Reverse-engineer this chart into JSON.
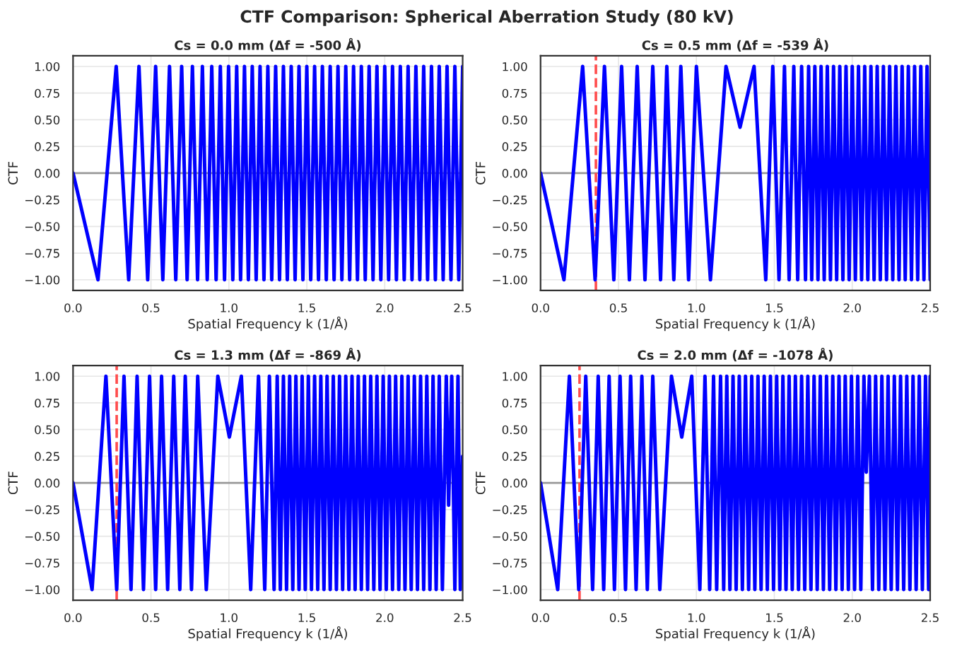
{
  "chart_data": [
    {
      "type": "line",
      "title": "Cs = 0.0 mm (Δf = -500 Å)",
      "xlabel": "Spatial Frequency k (1/Å)",
      "ylabel": "CTF",
      "annotations": [
        "CTF Comparison: Spherical Aberration Study (80 kV)"
      ],
      "xlim": [
        0,
        2.5
      ],
      "ylim": [
        -1.1,
        1.1
      ],
      "xticks": [
        {
          "value": 0,
          "label": "0.0"
        },
        {
          "value": 0.5,
          "label": "0.5"
        },
        {
          "value": 1,
          "label": "1.0"
        },
        {
          "value": 1.5,
          "label": "1.5"
        },
        {
          "value": 2,
          "label": "2.0"
        },
        {
          "value": 2.5,
          "label": "2.5"
        }
      ],
      "yticks": [
        {
          "value": -1,
          "label": "−1.00"
        },
        {
          "value": -0.75,
          "label": "−0.75"
        },
        {
          "value": -0.5,
          "label": "−0.50"
        },
        {
          "value": -0.25,
          "label": "−0.25"
        },
        {
          "value": 0,
          "label": "0.00"
        },
        {
          "value": 0.25,
          "label": "0.25"
        },
        {
          "value": 0.5,
          "label": "0.50"
        },
        {
          "value": 0.75,
          "label": "0.75"
        },
        {
          "value": 1,
          "label": "1.00"
        }
      ],
      "grid": true,
      "line_style": "solid",
      "ref_lines": [
        {
          "axis": "y",
          "value": 0,
          "color": "#999999"
        }
      ],
      "series": [
        {
          "color": "#0000ff",
          "x": [
            0,
            0.16,
            0.277,
            0.357,
            0.423,
            0.479,
            0.53,
            0.576,
            0.619,
            0.659,
            0.697,
            0.732,
            0.766,
            0.799,
            0.83,
            0.861,
            0.89,
            0.918,
            0.945,
            0.972,
            0.998,
            1.025,
            1.05,
            1.075,
            1.1,
            1.125,
            1.15,
            1.175,
            1.2,
            1.225,
            1.25,
            1.275,
            1.3,
            1.325,
            1.35,
            1.375,
            1.4,
            1.425,
            1.45,
            1.475,
            1.5,
            1.525,
            1.55,
            1.575,
            1.6,
            1.625,
            1.65,
            1.675,
            1.7,
            1.725,
            1.75,
            1.775,
            1.8,
            1.825,
            1.85,
            1.875,
            1.9,
            1.925,
            1.95,
            1.975,
            2.0,
            2.025,
            2.05,
            2.075,
            2.1,
            2.125,
            2.15,
            2.175,
            2.2,
            2.225,
            2.25,
            2.275,
            2.3,
            2.325,
            2.35,
            2.375,
            2.4,
            2.425,
            2.45,
            2.475,
            2.5
          ],
          "values": [
            0,
            -1,
            1,
            -1,
            1,
            -1,
            1,
            -1,
            1,
            -1,
            1,
            -1,
            1,
            -1,
            1,
            -1,
            1,
            -1,
            1,
            -1,
            1,
            -1,
            1,
            -1,
            1,
            -1,
            1,
            -1,
            1,
            -1,
            1,
            -1,
            1,
            -1,
            1,
            -1,
            1,
            -1,
            1,
            -1,
            1,
            -1,
            1,
            -1,
            1,
            -1,
            1,
            -1,
            1,
            -1,
            1,
            -1,
            1,
            -1,
            1,
            -1,
            1,
            -1,
            1,
            -1,
            1,
            -1,
            1,
            -1,
            1,
            -1,
            1,
            -1,
            1,
            -1,
            1,
            -1,
            1,
            -1,
            1,
            -1,
            1,
            -1,
            1,
            -1,
            1
          ]
        }
      ]
    },
    {
      "type": "line",
      "title": "Cs = 0.5 mm (Δf = -539 Å)",
      "xlabel": "Spatial Frequency k (1/Å)",
      "ylabel": "CTF",
      "xlim": [
        0,
        2.5
      ],
      "ylim": [
        -1.1,
        1.1
      ],
      "xticks": [
        {
          "value": 0,
          "label": "0.0"
        },
        {
          "value": 0.5,
          "label": "0.5"
        },
        {
          "value": 1,
          "label": "1.0"
        },
        {
          "value": 1.5,
          "label": "1.5"
        },
        {
          "value": 2,
          "label": "2.0"
        },
        {
          "value": 2.5,
          "label": "2.5"
        }
      ],
      "yticks": [
        {
          "value": -1,
          "label": "−1.00"
        },
        {
          "value": -0.75,
          "label": "−0.75"
        },
        {
          "value": -0.5,
          "label": "−0.50"
        },
        {
          "value": -0.25,
          "label": "−0.25"
        },
        {
          "value": 0,
          "label": "0.00"
        },
        {
          "value": 0.25,
          "label": "0.25"
        },
        {
          "value": 0.5,
          "label": "0.50"
        },
        {
          "value": 0.75,
          "label": "0.75"
        },
        {
          "value": 1,
          "label": "1.00"
        }
      ],
      "grid": true,
      "line_style": "solid",
      "ref_lines": [
        {
          "axis": "y",
          "value": 0,
          "color": "#999999"
        },
        {
          "axis": "x",
          "value": 0.355,
          "color": "#ff4d4d",
          "line_style": "dashed"
        }
      ],
      "series": [
        {
          "color": "#0000ff",
          "x": [
            0,
            0.15,
            0.27,
            0.35,
            0.41,
            0.47,
            0.52,
            0.57,
            0.62,
            0.67,
            0.72,
            0.77,
            0.81,
            0.855,
            0.9,
            0.95,
            1.0,
            1.09,
            1.19,
            1.28,
            1.37,
            1.445,
            1.49,
            1.53,
            1.565,
            1.595,
            1.625,
            1.65,
            1.675,
            1.7,
            1.72,
            1.74,
            1.76,
            1.78,
            1.8,
            1.82,
            1.84,
            1.86,
            1.88,
            1.9,
            1.92,
            1.94,
            1.96,
            1.98,
            2.0,
            2.02,
            2.04,
            2.06,
            2.08,
            2.1,
            2.12,
            2.14,
            2.16,
            2.18,
            2.2,
            2.22,
            2.24,
            2.26,
            2.28,
            2.3,
            2.32,
            2.34,
            2.36,
            2.38,
            2.4,
            2.42,
            2.44,
            2.46,
            2.48,
            2.5
          ],
          "values": [
            0,
            -1,
            1,
            -1,
            1,
            -1,
            1,
            -1,
            1,
            -1,
            1,
            -1,
            1,
            -1,
            1,
            -1,
            1,
            -1,
            1,
            0.43,
            1,
            -1,
            1,
            -1,
            1,
            -1,
            1,
            -1,
            1,
            -1,
            1,
            -1,
            1,
            -1,
            1,
            -1,
            1,
            -1,
            1,
            -1,
            1,
            -1,
            1,
            -1,
            1,
            -1,
            1,
            -1,
            1,
            -1,
            1,
            -1,
            1,
            -1,
            1,
            -1,
            1,
            -1,
            1,
            -1,
            1,
            -1,
            1,
            -1,
            1,
            -1,
            1,
            -1,
            1,
            -1
          ]
        }
      ]
    },
    {
      "type": "line",
      "title": "Cs = 1.3 mm (Δf = -869 Å)",
      "xlabel": "Spatial Frequency k (1/Å)",
      "ylabel": "CTF",
      "xlim": [
        0,
        2.5
      ],
      "ylim": [
        -1.1,
        1.1
      ],
      "xticks": [
        {
          "value": 0,
          "label": "0.0"
        },
        {
          "value": 0.5,
          "label": "0.5"
        },
        {
          "value": 1,
          "label": "1.0"
        },
        {
          "value": 1.5,
          "label": "1.5"
        },
        {
          "value": 2,
          "label": "2.0"
        },
        {
          "value": 2.5,
          "label": "2.5"
        }
      ],
      "yticks": [
        {
          "value": -1,
          "label": "−1.00"
        },
        {
          "value": -0.75,
          "label": "−0.75"
        },
        {
          "value": -0.5,
          "label": "−0.50"
        },
        {
          "value": -0.25,
          "label": "−0.25"
        },
        {
          "value": 0,
          "label": "0.00"
        },
        {
          "value": 0.25,
          "label": "0.25"
        },
        {
          "value": 0.5,
          "label": "0.50"
        },
        {
          "value": 0.75,
          "label": "0.75"
        },
        {
          "value": 1,
          "label": "1.00"
        }
      ],
      "grid": true,
      "line_style": "solid",
      "ref_lines": [
        {
          "axis": "y",
          "value": 0,
          "color": "#999999"
        },
        {
          "axis": "x",
          "value": 0.28,
          "color": "#ff4d4d",
          "line_style": "dashed"
        }
      ],
      "series": [
        {
          "color": "#0000ff",
          "x": [
            0,
            0.122,
            0.211,
            0.28,
            0.327,
            0.372,
            0.411,
            0.452,
            0.491,
            0.53,
            0.568,
            0.607,
            0.646,
            0.685,
            0.72,
            0.76,
            0.8,
            0.855,
            0.929,
            1.003,
            1.08,
            1.14,
            1.19,
            1.23,
            1.26,
            1.29,
            1.31,
            1.33,
            1.35,
            1.37,
            1.39,
            1.41,
            1.43,
            1.45,
            1.47,
            1.49,
            1.51,
            1.53,
            1.55,
            1.57,
            1.59,
            1.61,
            1.63,
            1.65,
            1.67,
            1.69,
            1.71,
            1.73,
            1.75,
            1.77,
            1.79,
            1.81,
            1.83,
            1.85,
            1.87,
            1.89,
            1.91,
            1.93,
            1.95,
            1.97,
            1.99,
            2.01,
            2.03,
            2.05,
            2.07,
            2.09,
            2.11,
            2.13,
            2.15,
            2.17,
            2.19,
            2.21,
            2.23,
            2.25,
            2.27,
            2.29,
            2.31,
            2.33,
            2.35,
            2.37,
            2.395,
            2.41,
            2.43,
            2.45,
            2.47,
            2.485,
            2.5
          ],
          "values": [
            0,
            -1,
            1,
            -1,
            1,
            -1,
            1,
            -1,
            1,
            -1,
            1,
            -1,
            1,
            -1,
            1,
            -1,
            1,
            -1,
            1,
            0.43,
            1,
            -1,
            1,
            -1,
            1,
            -1,
            1,
            -1,
            1,
            -1,
            1,
            -1,
            1,
            -1,
            1,
            -1,
            1,
            -1,
            1,
            -1,
            1,
            -1,
            1,
            -1,
            1,
            -1,
            1,
            -1,
            1,
            -1,
            1,
            -1,
            1,
            -1,
            1,
            -1,
            1,
            -1,
            1,
            -1,
            1,
            -1,
            1,
            -1,
            1,
            -1,
            1,
            -1,
            1,
            -1,
            1,
            -1,
            1,
            -1,
            1,
            -1,
            1,
            -1,
            1,
            -1,
            1,
            -0.21,
            1,
            -1,
            1,
            -1,
            0.25
          ]
        }
      ]
    },
    {
      "type": "line",
      "title": "Cs = 2.0 mm (Δf = -1078 Å)",
      "xlabel": "Spatial Frequency k (1/Å)",
      "ylabel": "CTF",
      "xlim": [
        0,
        2.5
      ],
      "ylim": [
        -1.1,
        1.1
      ],
      "xticks": [
        {
          "value": 0,
          "label": "0.0"
        },
        {
          "value": 0.5,
          "label": "0.5"
        },
        {
          "value": 1,
          "label": "1.0"
        },
        {
          "value": 1.5,
          "label": "1.5"
        },
        {
          "value": 2,
          "label": "2.0"
        },
        {
          "value": 2.5,
          "label": "2.5"
        }
      ],
      "yticks": [
        {
          "value": -1,
          "label": "−1.00"
        },
        {
          "value": -0.75,
          "label": "−0.75"
        },
        {
          "value": -0.5,
          "label": "−0.50"
        },
        {
          "value": -0.25,
          "label": "−0.25"
        },
        {
          "value": 0,
          "label": "0.00"
        },
        {
          "value": 0.25,
          "label": "0.25"
        },
        {
          "value": 0.5,
          "label": "0.50"
        },
        {
          "value": 0.75,
          "label": "0.75"
        },
        {
          "value": 1,
          "label": "1.00"
        }
      ],
      "grid": true,
      "line_style": "solid",
      "ref_lines": [
        {
          "axis": "y",
          "value": 0,
          "color": "#999999"
        },
        {
          "axis": "x",
          "value": 0.25,
          "color": "#ff4d4d",
          "line_style": "dashed"
        }
      ],
      "series": [
        {
          "color": "#0000ff",
          "x": [
            0,
            0.11,
            0.185,
            0.245,
            0.29,
            0.334,
            0.37,
            0.405,
            0.44,
            0.474,
            0.51,
            0.545,
            0.578,
            0.613,
            0.65,
            0.685,
            0.72,
            0.765,
            0.84,
            0.906,
            0.97,
            1.022,
            1.055,
            1.085,
            1.11,
            1.13,
            1.155,
            1.175,
            1.195,
            1.215,
            1.235,
            1.255,
            1.275,
            1.295,
            1.315,
            1.335,
            1.355,
            1.375,
            1.395,
            1.415,
            1.435,
            1.455,
            1.475,
            1.495,
            1.515,
            1.535,
            1.555,
            1.575,
            1.595,
            1.615,
            1.635,
            1.655,
            1.675,
            1.695,
            1.715,
            1.735,
            1.755,
            1.775,
            1.795,
            1.815,
            1.835,
            1.855,
            1.875,
            1.895,
            1.915,
            1.935,
            1.955,
            1.975,
            1.995,
            2.015,
            2.035,
            2.055,
            2.075,
            2.09,
            2.11,
            2.13,
            2.15,
            2.17,
            2.19,
            2.21,
            2.23,
            2.25,
            2.27,
            2.29,
            2.31,
            2.33,
            2.35,
            2.37,
            2.39,
            2.41,
            2.43,
            2.45,
            2.47,
            2.49,
            2.5
          ],
          "values": [
            0,
            -1,
            1,
            -1,
            1,
            -1,
            1,
            -1,
            1,
            -1,
            1,
            -1,
            1,
            -1,
            1,
            -1,
            1,
            -1,
            1,
            0.43,
            1,
            -1,
            1,
            -1,
            1,
            -1,
            1,
            -1,
            1,
            -1,
            1,
            -1,
            1,
            -1,
            1,
            -1,
            1,
            -1,
            1,
            -1,
            1,
            -1,
            1,
            -1,
            1,
            -1,
            1,
            -1,
            1,
            -1,
            1,
            -1,
            1,
            -1,
            1,
            -1,
            1,
            -1,
            1,
            -1,
            1,
            -1,
            1,
            -1,
            1,
            -1,
            1,
            -1,
            1,
            -1,
            1,
            -1,
            1,
            0.1,
            1,
            -1,
            1,
            -1,
            1,
            -1,
            1,
            -1,
            1,
            -1,
            1,
            -1,
            1,
            -1,
            1,
            -1,
            1,
            -1,
            1,
            -1,
            1
          ]
        }
      ]
    }
  ]
}
